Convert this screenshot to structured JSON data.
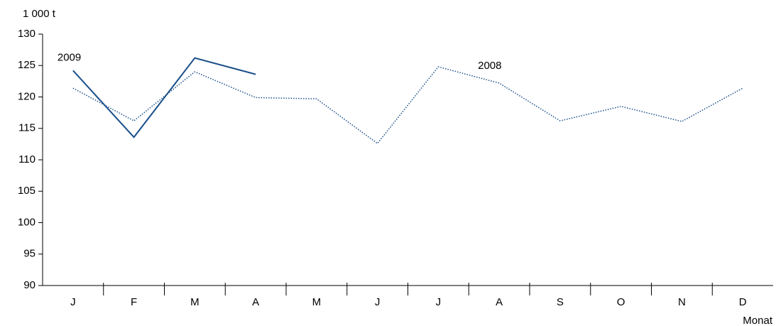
{
  "chart_data": {
    "type": "line",
    "y_label": "1 000 t",
    "x_label": "Monat",
    "categories": [
      "J",
      "F",
      "M",
      "A",
      "M",
      "J",
      "J",
      "A",
      "S",
      "O",
      "N",
      "D"
    ],
    "series": [
      {
        "name": "2009",
        "color": "#1b4f8a",
        "style": "solid",
        "values": [
          124.2,
          113.6,
          126.2,
          123.6,
          null,
          null,
          null,
          null,
          null,
          null,
          null,
          null
        ]
      },
      {
        "name": "2008",
        "color": "#1b4f8a",
        "style": "dotted",
        "values": [
          121.4,
          116.2,
          124.0,
          119.9,
          119.7,
          112.6,
          124.8,
          122.2,
          116.2,
          118.5,
          116.1,
          121.4
        ]
      }
    ],
    "ylim": [
      90,
      130
    ],
    "yticks": [
      90,
      95,
      100,
      105,
      110,
      115,
      120,
      125,
      130
    ],
    "grid": false
  }
}
